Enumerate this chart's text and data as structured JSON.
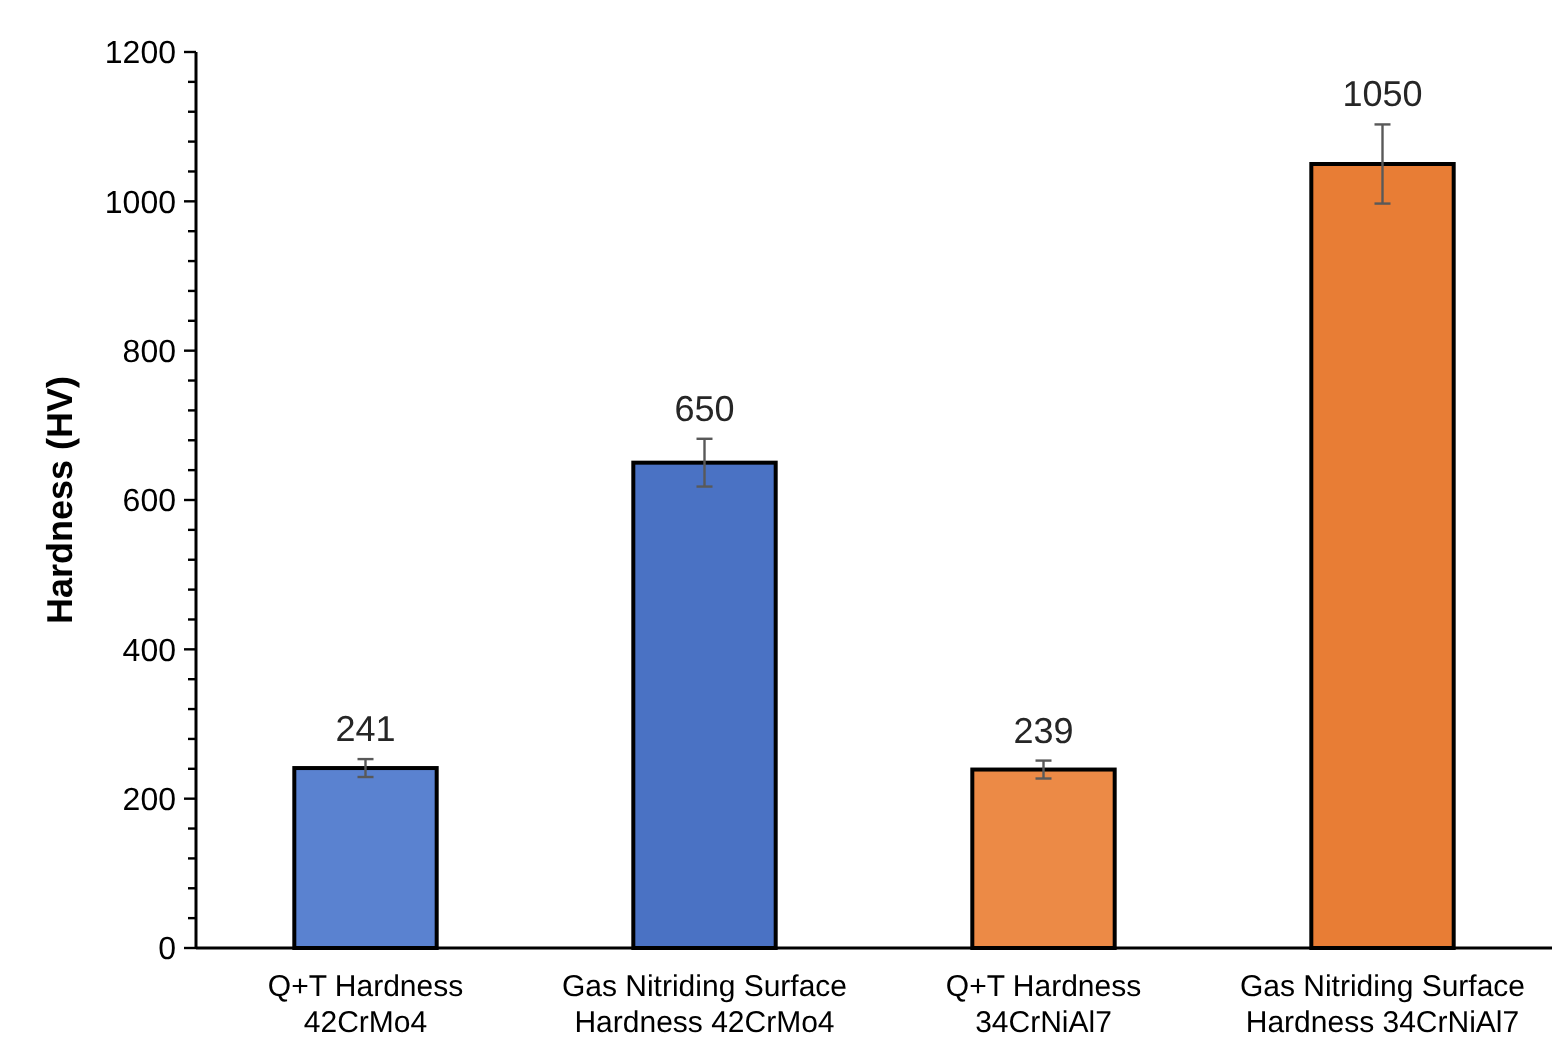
{
  "chart_data": {
    "type": "bar",
    "ylabel": "Hardness (HV)",
    "categories": [
      "Q+T Hardness\n42CrMo4",
      "Gas Nitriding Surface\nHardness 42CrMo4",
      "Q+T Hardness\n34CrNiAl7",
      "Gas Nitriding Surface\nHardness 34CrNiAl7"
    ],
    "values": [
      241,
      650,
      239,
      1050
    ],
    "errors": [
      12,
      32,
      12,
      53
    ],
    "colors": [
      "#5a82d0",
      "#4a72c4",
      "#ec8a46",
      "#e87d35"
    ],
    "data_labels": true,
    "ylim": [
      0,
      1200
    ],
    "yticks": [
      0,
      {
        "value": 40,
        "label": null
      },
      {
        "value": 80,
        "label": null
      },
      {
        "value": 120,
        "label": null
      },
      {
        "value": 160,
        "label": null
      },
      200,
      {
        "value": 240,
        "label": null
      },
      {
        "value": 280,
        "label": null
      },
      {
        "value": 320,
        "label": null
      },
      {
        "value": 360,
        "label": null
      },
      400,
      {
        "value": 440,
        "label": null
      },
      {
        "value": 480,
        "label": null
      },
      {
        "value": 520,
        "label": null
      },
      {
        "value": 560,
        "label": null
      },
      600,
      {
        "value": 640,
        "label": null
      },
      {
        "value": 680,
        "label": null
      },
      {
        "value": 720,
        "label": null
      },
      {
        "value": 760,
        "label": null
      },
      800,
      {
        "value": 840,
        "label": null
      },
      {
        "value": 880,
        "label": null
      },
      {
        "value": 920,
        "label": null
      },
      {
        "value": 960,
        "label": null
      },
      1000,
      {
        "value": 1040,
        "label": null
      },
      {
        "value": 1080,
        "label": null
      },
      {
        "value": 1120,
        "label": null
      },
      {
        "value": 1160,
        "label": null
      },
      1200
    ],
    "grid": false
  }
}
